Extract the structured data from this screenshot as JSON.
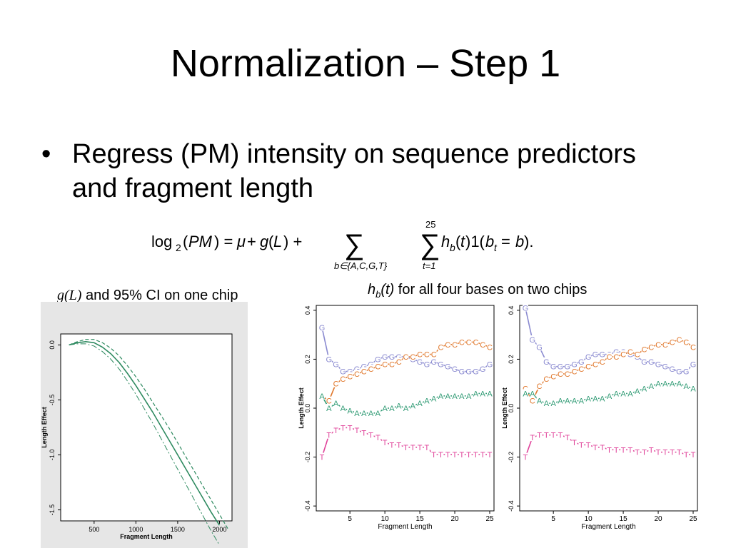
{
  "slide": {
    "title": "Normalization – Step 1",
    "bullet": "Regress (PM) intensity on sequence predictors and fragment length",
    "caption_left": {
      "math": "g(L)",
      "text": " and 95% CI on one chip"
    },
    "caption_right": {
      "math_h": "h",
      "math_sub": "b",
      "math_t": "(t)",
      "text": " for all four bases on two chips"
    }
  },
  "colors": {
    "A": "#2e9a73",
    "C": "#e0772b",
    "G": "#8a8ad0",
    "T": "#e0439a",
    "gl_line": "#2e8a60"
  },
  "chart_data": [
    {
      "type": "line",
      "xlabel": "Fragment Length",
      "ylabel": "Length Effect",
      "xticks": [
        "500",
        "1000",
        "1500",
        "2000"
      ],
      "yticks": [
        "0.0",
        "-0.5",
        "-1.0",
        "-1.5"
      ],
      "xlim": [
        100,
        2150
      ],
      "ylim": [
        -1.6,
        0.1
      ],
      "series": [
        {
          "x": [
            200,
            300,
            400,
            500,
            600,
            700,
            800,
            900,
            1000,
            1100,
            1200,
            1300,
            1400,
            1500,
            1600,
            1700,
            1800,
            1900,
            2000
          ],
          "values": [
            0.0,
            0.02,
            0.03,
            0.02,
            -0.02,
            -0.08,
            -0.16,
            -0.26,
            -0.37,
            -0.49,
            -0.61,
            -0.74,
            -0.87,
            -1.0,
            -1.13,
            -1.26,
            -1.39,
            -1.52,
            -1.64
          ]
        },
        {
          "x": [
            200,
            300,
            400,
            500,
            600,
            700,
            800,
            900,
            1000,
            1100,
            1200,
            1300,
            1400,
            1500,
            1600,
            1700,
            1800,
            1900,
            2000,
            2100
          ],
          "values": [
            0.0,
            0.03,
            0.05,
            0.05,
            0.02,
            -0.03,
            -0.1,
            -0.19,
            -0.29,
            -0.4,
            -0.52,
            -0.64,
            -0.76,
            -0.89,
            -1.02,
            -1.15,
            -1.28,
            -1.41,
            -1.54,
            -1.67
          ]
        },
        {
          "x": [
            200,
            300,
            400,
            500,
            600,
            700,
            800,
            900,
            1000,
            1100,
            1200,
            1300,
            1400,
            1500,
            1600,
            1700,
            1800,
            1900,
            2000
          ],
          "values": [
            0.0,
            0.01,
            0.01,
            -0.01,
            -0.06,
            -0.13,
            -0.22,
            -0.33,
            -0.45,
            -0.58,
            -0.71,
            -0.85,
            -0.99,
            -1.13,
            -1.27,
            -1.41,
            -1.55,
            -1.69,
            -1.82
          ]
        }
      ]
    },
    {
      "type": "line",
      "xlabel": "Fragment Length",
      "ylabel": "Length Effect",
      "xticks": [
        "5",
        "10",
        "15",
        "20",
        "25"
      ],
      "yticks": [
        "0.4",
        "0.2",
        "0.0",
        "-0.2",
        "-0.4"
      ],
      "xlim": [
        1,
        25
      ],
      "ylim": [
        -0.42,
        0.42
      ],
      "series": [
        {
          "name": "G",
          "values": [
            0.33,
            0.2,
            0.18,
            0.15,
            0.15,
            0.16,
            0.17,
            0.18,
            0.2,
            0.21,
            0.21,
            0.21,
            0.21,
            0.2,
            0.19,
            0.18,
            0.19,
            0.18,
            0.17,
            0.16,
            0.15,
            0.15,
            0.15,
            0.16,
            0.18
          ]
        },
        {
          "name": "C",
          "values": [
            0.05,
            0.03,
            0.1,
            0.12,
            0.13,
            0.14,
            0.15,
            0.16,
            0.17,
            0.18,
            0.18,
            0.19,
            0.21,
            0.21,
            0.22,
            0.22,
            0.22,
            0.25,
            0.26,
            0.26,
            0.27,
            0.27,
            0.27,
            0.26,
            0.25
          ]
        },
        {
          "name": "A",
          "values": [
            0.05,
            0.0,
            0.02,
            0.0,
            -0.01,
            -0.02,
            -0.02,
            -0.02,
            -0.02,
            0.0,
            0.0,
            0.01,
            0.0,
            0.01,
            0.02,
            0.03,
            0.04,
            0.05,
            0.05,
            0.05,
            0.05,
            0.05,
            0.06,
            0.06,
            0.06
          ]
        },
        {
          "name": "T",
          "values": [
            -0.2,
            -0.11,
            -0.09,
            -0.08,
            -0.08,
            -0.09,
            -0.1,
            -0.11,
            -0.12,
            -0.14,
            -0.15,
            -0.15,
            -0.16,
            -0.16,
            -0.16,
            -0.16,
            -0.19,
            -0.19,
            -0.19,
            -0.19,
            -0.19,
            -0.19,
            -0.19,
            -0.19,
            -0.19
          ]
        }
      ]
    },
    {
      "type": "line",
      "xlabel": "Fragment Length",
      "ylabel": "Length Effect",
      "xticks": [
        "5",
        "10",
        "15",
        "20",
        "25"
      ],
      "yticks": [
        "0.4",
        "0.2",
        "0.0",
        "-0.2",
        "-0.4"
      ],
      "xlim": [
        1,
        25
      ],
      "ylim": [
        -0.42,
        0.42
      ],
      "series": [
        {
          "name": "G",
          "values": [
            0.41,
            0.28,
            0.25,
            0.19,
            0.17,
            0.17,
            0.17,
            0.18,
            0.19,
            0.21,
            0.22,
            0.22,
            0.22,
            0.23,
            0.23,
            0.22,
            0.21,
            0.19,
            0.19,
            0.18,
            0.17,
            0.16,
            0.15,
            0.15,
            0.18
          ]
        },
        {
          "name": "C",
          "values": [
            0.08,
            0.03,
            0.09,
            0.12,
            0.13,
            0.14,
            0.14,
            0.15,
            0.16,
            0.17,
            0.18,
            0.19,
            0.21,
            0.21,
            0.22,
            0.23,
            0.22,
            0.24,
            0.25,
            0.26,
            0.26,
            0.27,
            0.28,
            0.27,
            0.25
          ]
        },
        {
          "name": "A",
          "values": [
            0.06,
            0.06,
            0.03,
            0.02,
            0.02,
            0.03,
            0.03,
            0.03,
            0.03,
            0.04,
            0.04,
            0.04,
            0.05,
            0.06,
            0.06,
            0.06,
            0.07,
            0.08,
            0.09,
            0.1,
            0.1,
            0.1,
            0.1,
            0.09,
            0.08
          ]
        },
        {
          "name": "T",
          "values": [
            -0.2,
            -0.12,
            -0.11,
            -0.11,
            -0.11,
            -0.11,
            -0.12,
            -0.14,
            -0.15,
            -0.15,
            -0.16,
            -0.16,
            -0.17,
            -0.17,
            -0.17,
            -0.17,
            -0.18,
            -0.18,
            -0.17,
            -0.18,
            -0.18,
            -0.18,
            -0.18,
            -0.19,
            -0.19
          ]
        }
      ]
    }
  ]
}
